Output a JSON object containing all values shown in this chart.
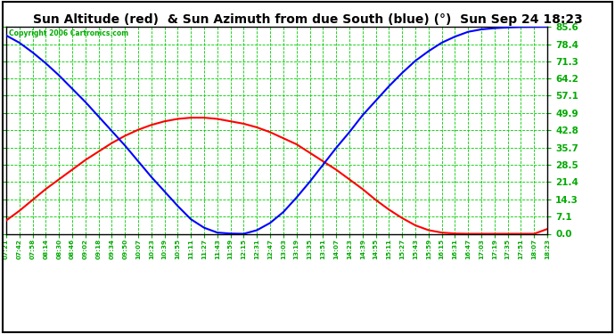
{
  "title": "Sun Altitude (red)  & Sun Azimuth from due South (blue) (°)  Sun Sep 24 18:23",
  "copyright": "Copyright 2006 Cartronics.com",
  "yticks": [
    0.0,
    7.1,
    14.3,
    21.4,
    28.5,
    35.7,
    42.8,
    49.9,
    57.1,
    64.2,
    71.3,
    78.4,
    85.6
  ],
  "ymin": 0.0,
  "ymax": 85.6,
  "grid_color": "#00cc00",
  "plot_bg_color": "#ffffff",
  "fig_bg_color": "#ffffff",
  "red_color": "#ff0000",
  "blue_color": "#0000ff",
  "border_color": "#000000",
  "tick_color": "#00aa00",
  "times": [
    "07:21",
    "07:42",
    "07:58",
    "08:14",
    "08:30",
    "08:46",
    "09:02",
    "09:18",
    "09:34",
    "09:50",
    "10:07",
    "10:23",
    "10:39",
    "10:55",
    "11:11",
    "11:27",
    "11:43",
    "11:59",
    "12:15",
    "12:31",
    "12:47",
    "13:03",
    "13:19",
    "13:35",
    "13:51",
    "14:07",
    "14:23",
    "14:39",
    "14:55",
    "15:11",
    "15:27",
    "15:43",
    "15:59",
    "16:15",
    "16:31",
    "16:47",
    "17:03",
    "17:19",
    "17:35",
    "17:51",
    "18:07",
    "18:23"
  ],
  "altitude": [
    5.5,
    9.5,
    14.0,
    18.5,
    22.5,
    26.5,
    30.5,
    34.0,
    37.5,
    40.5,
    43.0,
    45.0,
    46.5,
    47.5,
    48.0,
    48.0,
    47.5,
    46.5,
    45.5,
    44.0,
    42.0,
    39.5,
    37.0,
    33.5,
    30.0,
    26.5,
    22.5,
    18.5,
    14.0,
    10.0,
    6.5,
    3.5,
    1.5,
    0.5,
    0.1,
    0.0,
    0.0,
    0.0,
    0.0,
    0.0,
    0.0,
    2.0
  ],
  "azimuth": [
    82.0,
    79.0,
    75.0,
    70.5,
    65.5,
    60.0,
    54.5,
    48.5,
    42.5,
    36.5,
    30.0,
    23.5,
    17.5,
    11.5,
    6.0,
    2.5,
    0.5,
    0.1,
    0.0,
    1.5,
    4.5,
    9.0,
    15.0,
    21.5,
    28.5,
    35.5,
    42.0,
    49.0,
    55.0,
    61.0,
    66.5,
    71.5,
    75.5,
    79.0,
    81.5,
    83.5,
    84.5,
    85.0,
    85.3,
    85.5,
    85.55,
    85.6
  ],
  "figsize": [
    6.9,
    3.75
  ],
  "dpi": 100
}
